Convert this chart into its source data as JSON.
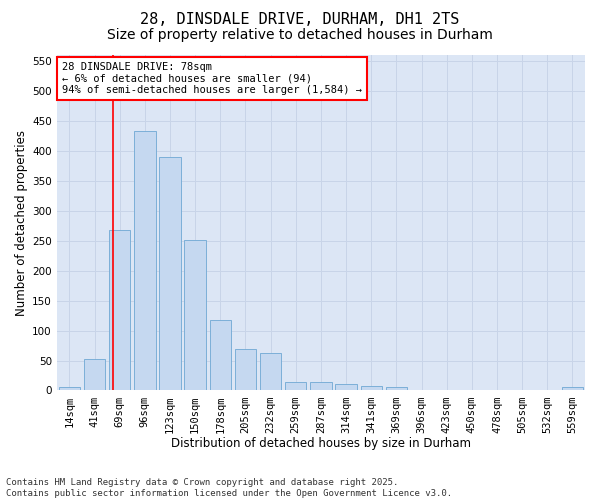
{
  "title_line1": "28, DINSDALE DRIVE, DURHAM, DH1 2TS",
  "title_line2": "Size of property relative to detached houses in Durham",
  "xlabel": "Distribution of detached houses by size in Durham",
  "ylabel": "Number of detached properties",
  "bar_color": "#c5d8f0",
  "bar_edge_color": "#6fa8d4",
  "categories": [
    "14sqm",
    "41sqm",
    "69sqm",
    "96sqm",
    "123sqm",
    "150sqm",
    "178sqm",
    "205sqm",
    "232sqm",
    "259sqm",
    "287sqm",
    "314sqm",
    "341sqm",
    "369sqm",
    "396sqm",
    "423sqm",
    "450sqm",
    "478sqm",
    "505sqm",
    "532sqm",
    "559sqm"
  ],
  "values": [
    5,
    52,
    268,
    433,
    390,
    251,
    117,
    70,
    63,
    14,
    14,
    10,
    7,
    6,
    1,
    0,
    0,
    1,
    0,
    0,
    5
  ],
  "ylim": [
    0,
    560
  ],
  "yticks": [
    0,
    50,
    100,
    150,
    200,
    250,
    300,
    350,
    400,
    450,
    500,
    550
  ],
  "grid_color": "#c8d4e8",
  "background_color": "#dce6f5",
  "vline_color": "red",
  "vline_x": 1.72,
  "annotation_text_line1": "28 DINSDALE DRIVE: 78sqm",
  "annotation_text_line2": "← 6% of detached houses are smaller (94)",
  "annotation_text_line3": "94% of semi-detached houses are larger (1,584) →",
  "footer_text": "Contains HM Land Registry data © Crown copyright and database right 2025.\nContains public sector information licensed under the Open Government Licence v3.0.",
  "title_fontsize": 11,
  "subtitle_fontsize": 10,
  "axis_label_fontsize": 8.5,
  "tick_fontsize": 7.5,
  "annotation_fontsize": 7.5,
  "footer_fontsize": 6.5
}
